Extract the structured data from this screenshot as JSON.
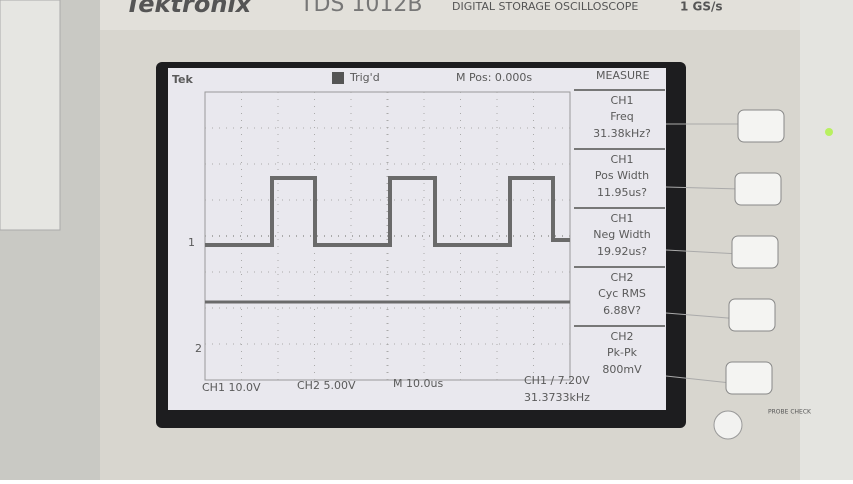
{
  "brand": "Tektronix",
  "model": "TDS 1012B",
  "description": "DIGITAL STORAGE OSCILLOSCOPE",
  "sample_rate": "1 GS/s",
  "screen": {
    "logo": "Tek",
    "trigger_status": "Trig'd",
    "position": "M Pos: 0.000s",
    "menu_title": "MEASURE",
    "measurements": [
      {
        "channel": "CH1",
        "label": "Freq",
        "value": "31.38kHz?"
      },
      {
        "channel": "CH1",
        "label": "Pos Width",
        "value": "11.95us?"
      },
      {
        "channel": "CH1",
        "label": "Neg Width",
        "value": "19.92us?"
      },
      {
        "channel": "CH2",
        "label": "Cyc RMS",
        "value": "6.88V?"
      },
      {
        "channel": "CH2",
        "label": "Pk-Pk",
        "value": "800mV"
      }
    ],
    "markers": [
      "1",
      "2"
    ],
    "status": {
      "ch1_scale": "CH1 10.0V",
      "ch2_scale": "CH2 5.00V",
      "timebase": "M 10.0us",
      "trigger": "CH1 ∕ 7.20V",
      "frequency": "31.3733kHz"
    }
  },
  "panel": {
    "probe_check": "PROBE CHECK"
  }
}
